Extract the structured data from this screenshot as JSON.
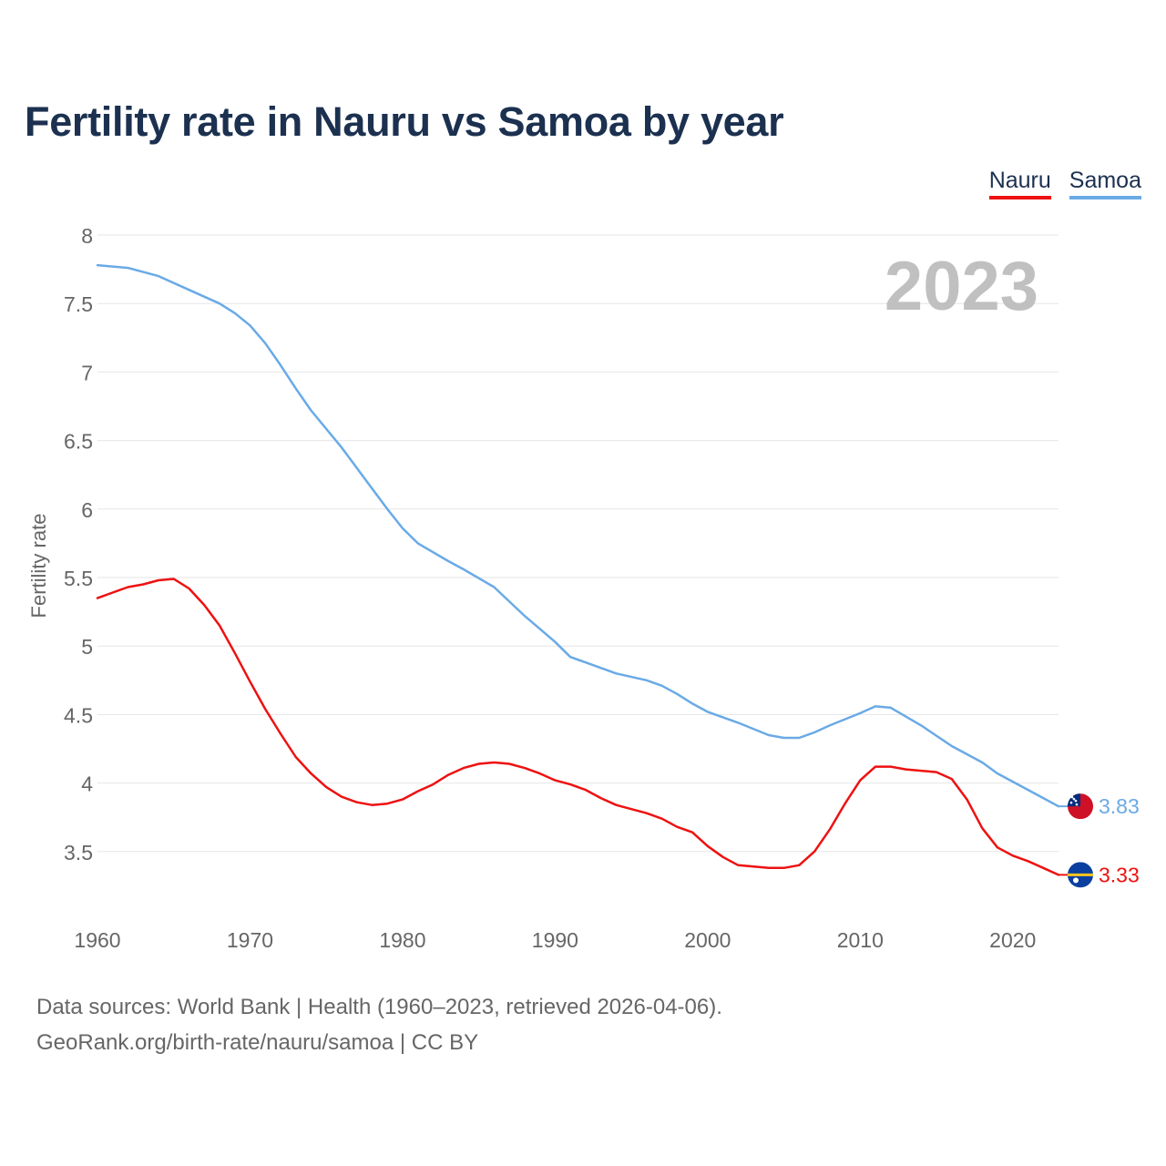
{
  "title": "Fertility rate in Nauru vs Samoa by year",
  "legend": [
    {
      "name": "Nauru",
      "color": "#ee1111"
    },
    {
      "name": "Samoa",
      "color": "#6aaae6"
    }
  ],
  "chart_data": {
    "type": "line",
    "title": "Fertility rate in Nauru vs Samoa by year",
    "ylabel": "Fertility rate",
    "xlabel": "",
    "year_label": "2023",
    "xlim": [
      1960,
      2023
    ],
    "ylim": [
      3,
      8
    ],
    "yticks": [
      "3.5",
      "4",
      "4.5",
      "5",
      "5.5",
      "6",
      "6.5",
      "7",
      "7.5",
      "8"
    ],
    "xticks": [
      "1960",
      "1970",
      "1980",
      "1990",
      "2000",
      "2010",
      "2020"
    ],
    "grid": true,
    "series": [
      {
        "name": "Samoa",
        "color": "#6aaae6",
        "end_label": "3.83",
        "flag": "samoa-flag",
        "x": [
          1960,
          1962,
          1964,
          1966,
          1968,
          1969,
          1970,
          1971,
          1972,
          1973,
          1974,
          1976,
          1978,
          1979,
          1980,
          1981,
          1983,
          1984,
          1986,
          1988,
          1990,
          1991,
          1992,
          1994,
          1996,
          1997,
          1998,
          1999,
          2000,
          2002,
          2004,
          2005,
          2006,
          2007,
          2008,
          2010,
          2011,
          2012,
          2014,
          2016,
          2018,
          2019,
          2020,
          2022,
          2023
        ],
        "values": [
          7.78,
          7.76,
          7.7,
          7.6,
          7.5,
          7.43,
          7.34,
          7.21,
          7.05,
          6.88,
          6.72,
          6.45,
          6.15,
          6.0,
          5.86,
          5.75,
          5.62,
          5.56,
          5.43,
          5.22,
          5.03,
          4.92,
          4.88,
          4.8,
          4.75,
          4.71,
          4.65,
          4.58,
          4.52,
          4.44,
          4.35,
          4.33,
          4.33,
          4.37,
          4.42,
          4.51,
          4.56,
          4.55,
          4.42,
          4.27,
          4.15,
          4.07,
          4.01,
          3.89,
          3.83
        ]
      },
      {
        "name": "Nauru",
        "color": "#ee1111",
        "end_label": "3.33",
        "flag": "nauru-flag",
        "x": [
          1960,
          1961,
          1962,
          1963,
          1964,
          1965,
          1966,
          1967,
          1968,
          1969,
          1970,
          1971,
          1972,
          1973,
          1974,
          1975,
          1976,
          1977,
          1978,
          1979,
          1980,
          1981,
          1982,
          1983,
          1984,
          1985,
          1986,
          1987,
          1988,
          1989,
          1990,
          1991,
          1992,
          1993,
          1994,
          1995,
          1996,
          1997,
          1998,
          1999,
          2000,
          2001,
          2002,
          2003,
          2004,
          2005,
          2006,
          2007,
          2008,
          2009,
          2010,
          2011,
          2012,
          2013,
          2014,
          2015,
          2016,
          2017,
          2018,
          2019,
          2020,
          2021,
          2022,
          2023
        ],
        "values": [
          5.35,
          5.39,
          5.43,
          5.45,
          5.48,
          5.49,
          5.42,
          5.3,
          5.15,
          4.95,
          4.74,
          4.54,
          4.36,
          4.19,
          4.07,
          3.97,
          3.9,
          3.86,
          3.84,
          3.85,
          3.88,
          3.94,
          3.99,
          4.06,
          4.11,
          4.14,
          4.15,
          4.14,
          4.11,
          4.07,
          4.02,
          3.99,
          3.95,
          3.89,
          3.84,
          3.81,
          3.78,
          3.74,
          3.68,
          3.64,
          3.54,
          3.46,
          3.4,
          3.39,
          3.38,
          3.38,
          3.4,
          3.5,
          3.66,
          3.85,
          4.02,
          4.12,
          4.12,
          4.1,
          4.09,
          4.08,
          4.03,
          3.88,
          3.67,
          3.53,
          3.47,
          3.43,
          3.38,
          3.33
        ]
      }
    ]
  },
  "footer": {
    "sources": "Data sources: World Bank | Health (1960–2023, retrieved 2026-04-06).",
    "link": "GeoRank.org/birth-rate/nauru/samoa | CC BY"
  }
}
